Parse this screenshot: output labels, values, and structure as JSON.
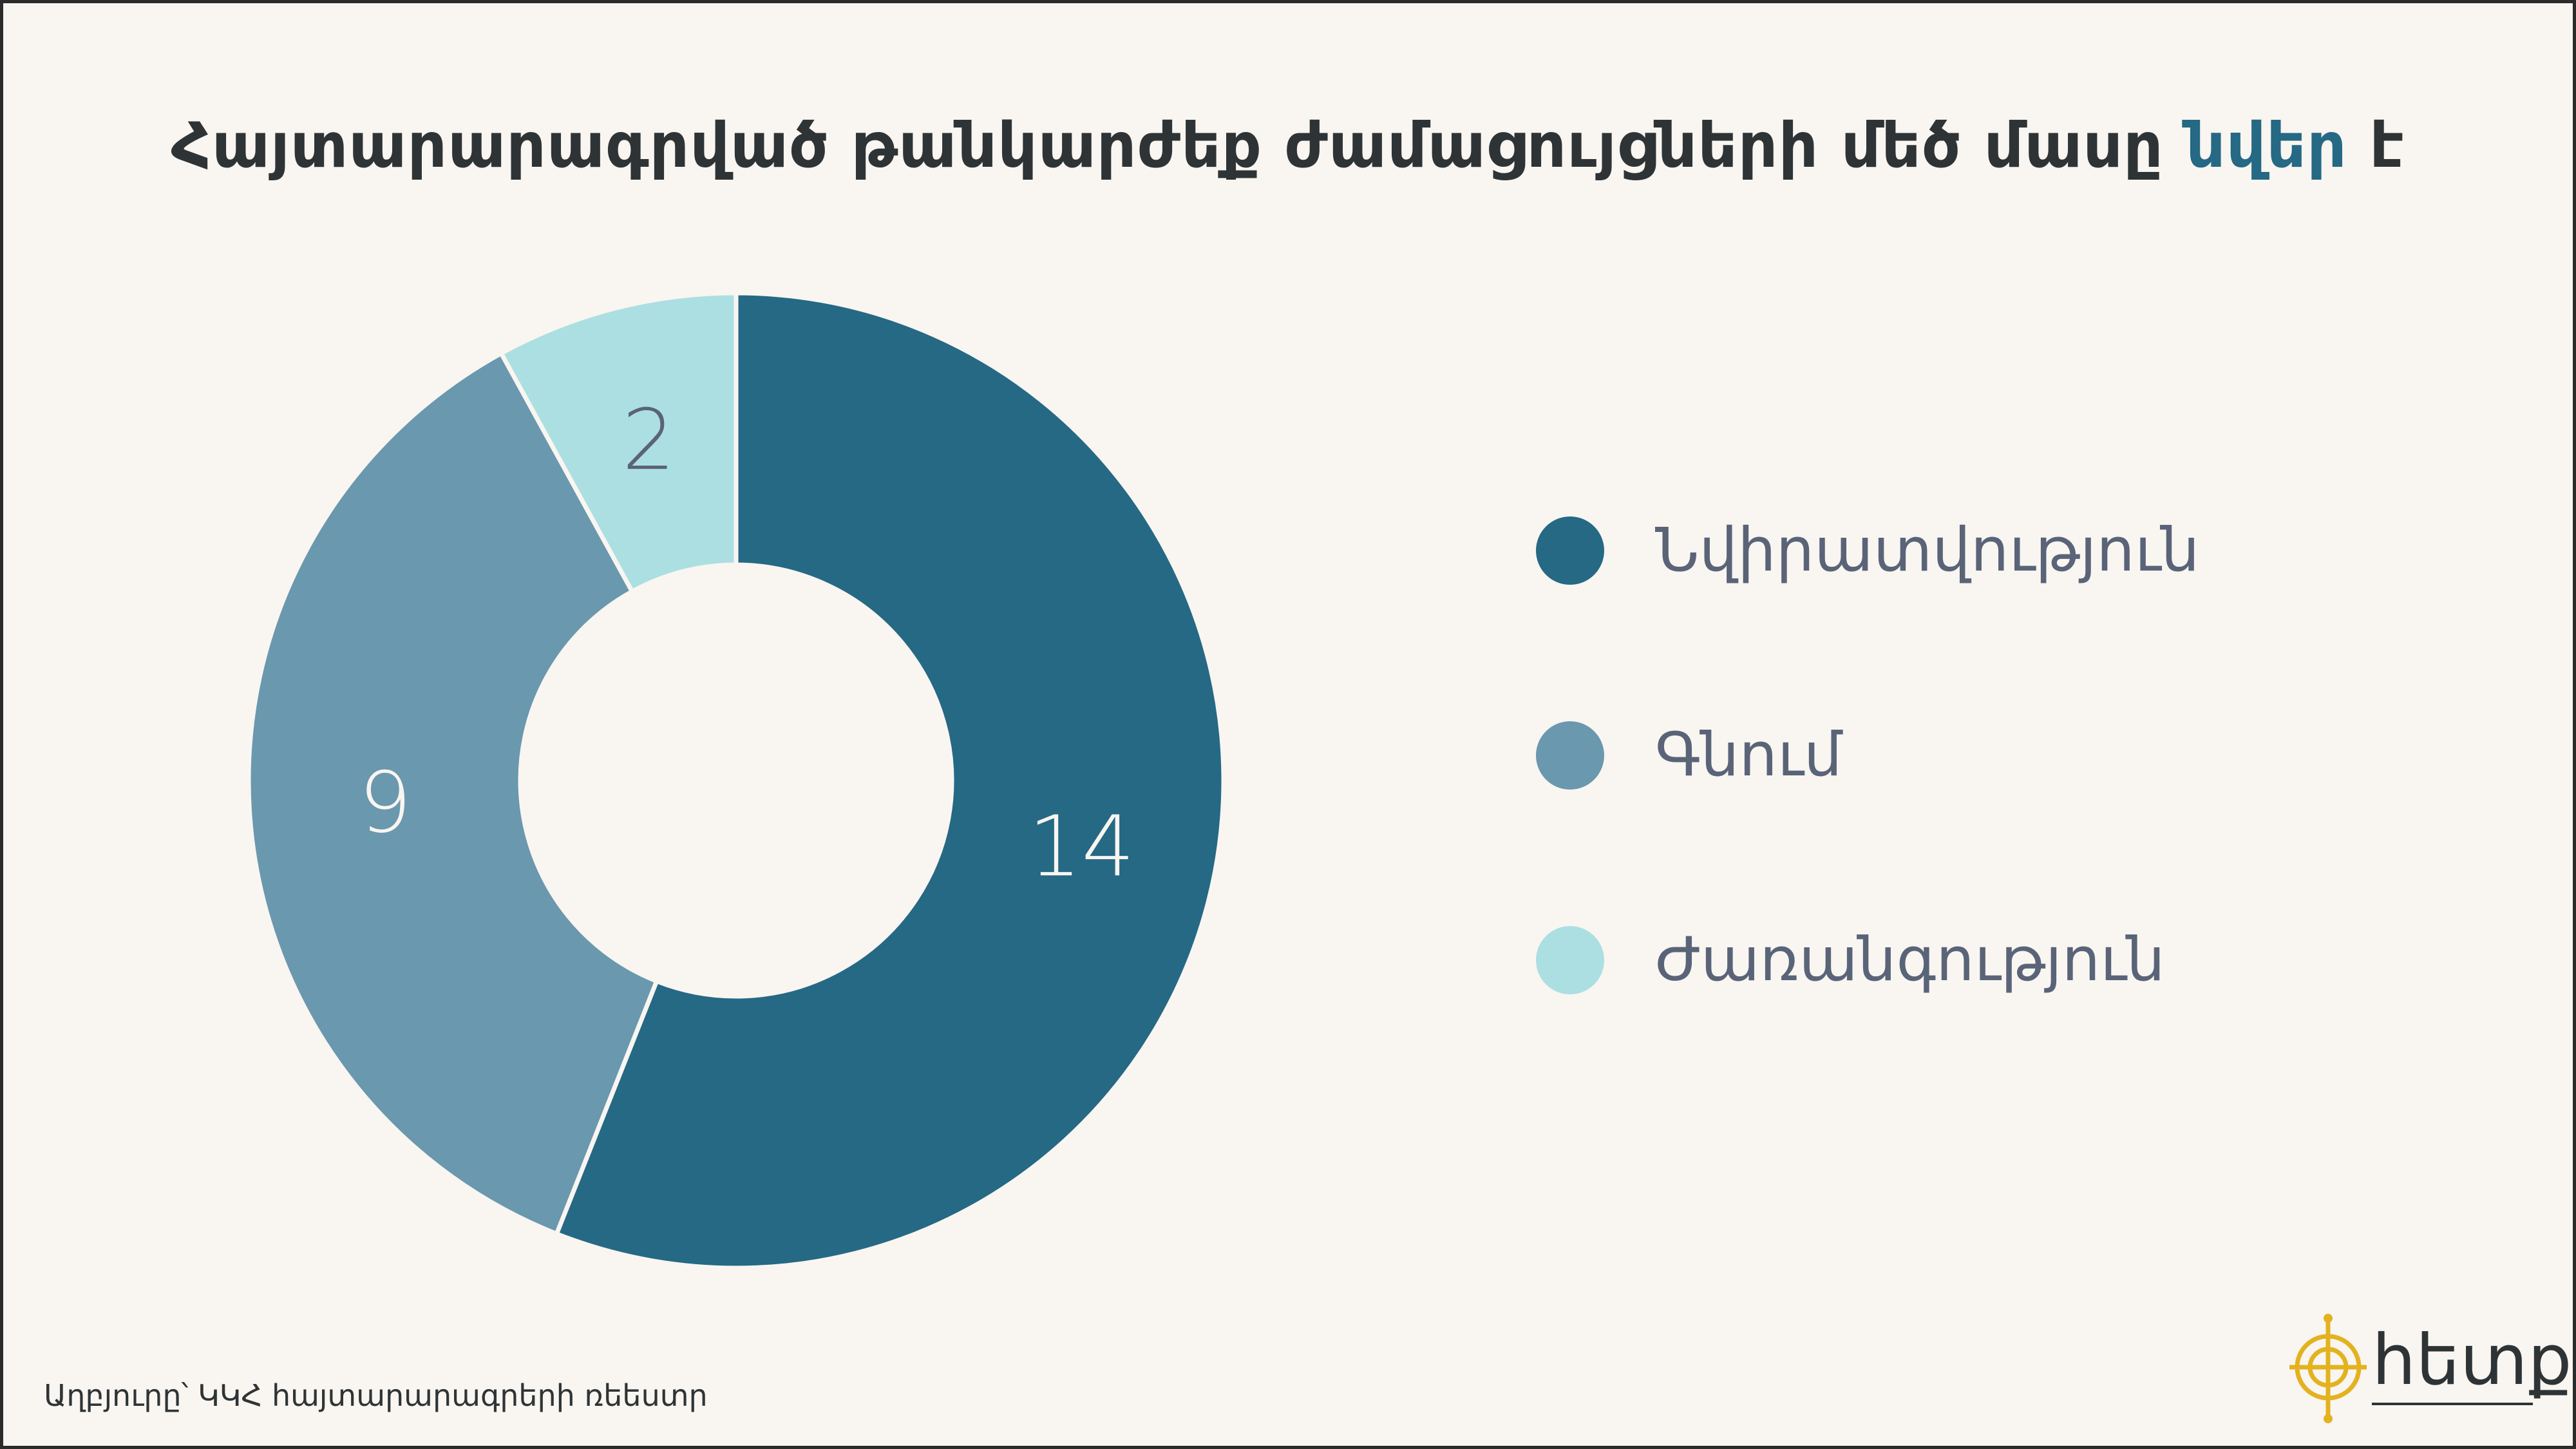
{
  "title": {
    "before": "Հայտարարագրված թանկարժեք ժամացույցների մեծ մասը ",
    "accent": "նվեր",
    "after": " է"
  },
  "colors": {
    "background": "#f9f5f1",
    "accent": "#256984"
  },
  "chart_data": {
    "type": "pie",
    "variant": "donut",
    "categories": [
      "Նվիրատվություն",
      "Գնում",
      "Ժառանգություն"
    ],
    "values": [
      14,
      9,
      2
    ],
    "colors": [
      "#256984",
      "#6a98ae",
      "#acdfe2"
    ],
    "data_labels": [
      "14",
      "9",
      "2"
    ],
    "legend_position": "right"
  },
  "source": "Աղբյուրը՝ ԿԿՀ հայտարարագրերի ռեեստր",
  "logo": {
    "text": "հետք"
  }
}
